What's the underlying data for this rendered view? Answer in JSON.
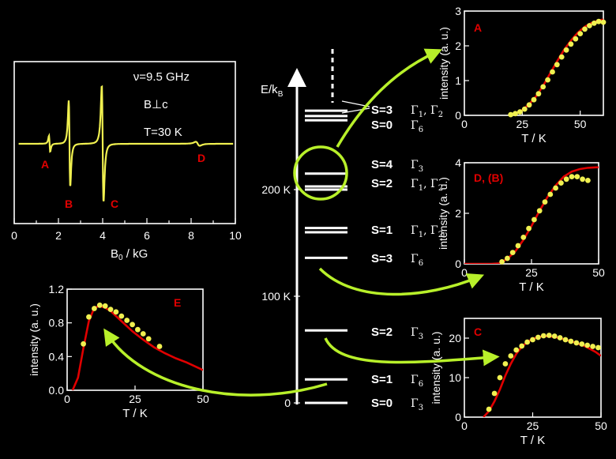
{
  "chart_data": [
    {
      "id": "epr",
      "type": "line",
      "xlabel": "B",
      "xlabel_sub": "0",
      "xlabel_unit": " / kG",
      "xlim": [
        0,
        10
      ],
      "xticks": [
        "0",
        "2",
        "4",
        "6",
        "8",
        "10"
      ],
      "annotations": [
        "ν=9.5 GHz",
        "B⊥c",
        "T=30 K"
      ],
      "peak_labels": [
        {
          "text": "A",
          "x": 1.6
        },
        {
          "text": "B",
          "x": 2.5
        },
        {
          "text": "C",
          "x": 4.0
        },
        {
          "text": "D",
          "x": 8.3
        }
      ],
      "signal": {
        "baseline": 0,
        "features": [
          {
            "x": 1.6,
            "amp": 0.12,
            "w": 0.05
          },
          {
            "x": 2.5,
            "amp": 0.65,
            "w": 0.06
          },
          {
            "x": 4.0,
            "amp": 0.88,
            "w": 0.07
          },
          {
            "x": 8.3,
            "amp": 0.03,
            "w": 0.15
          }
        ]
      }
    },
    {
      "id": "A",
      "type": "scatter",
      "label": "A",
      "xlabel": "T / K",
      "ylabel": "intensity (a. u.)",
      "xlim": [
        0,
        60
      ],
      "ylim": [
        0,
        3
      ],
      "xticks": [
        "0",
        "25",
        "50"
      ],
      "yticks": [
        "0",
        "1",
        "2",
        "3"
      ],
      "fit": {
        "x": [
          19,
          22,
          25,
          28,
          31,
          34,
          37,
          40,
          43,
          46,
          49,
          52,
          55,
          58,
          60
        ],
        "y": [
          0.0,
          0.05,
          0.15,
          0.32,
          0.55,
          0.85,
          1.2,
          1.55,
          1.88,
          2.15,
          2.38,
          2.55,
          2.66,
          2.73,
          2.76
        ]
      },
      "points": {
        "x": [
          20,
          22,
          24,
          26,
          28,
          30,
          32,
          34,
          36,
          38,
          40,
          42,
          44,
          46,
          48,
          50,
          52,
          54,
          56,
          58,
          60
        ],
        "y": [
          0.02,
          0.05,
          0.1,
          0.18,
          0.3,
          0.45,
          0.62,
          0.82,
          1.02,
          1.25,
          1.46,
          1.68,
          1.88,
          2.05,
          2.2,
          2.35,
          2.48,
          2.58,
          2.65,
          2.7,
          2.68
        ]
      }
    },
    {
      "id": "DB",
      "type": "scatter",
      "label": "D, (B)",
      "xlabel": "T / K",
      "ylabel": "intensity (a. u.)",
      "xlim": [
        0,
        50
      ],
      "ylim": [
        0,
        4
      ],
      "xticks": [
        "0",
        "25",
        "50"
      ],
      "yticks": [
        "0",
        "2",
        "4"
      ],
      "fit": {
        "x": [
          0,
          10,
          13,
          16,
          19,
          22,
          25,
          28,
          31,
          34,
          37,
          40,
          43,
          46,
          49,
          50
        ],
        "y": [
          0,
          0,
          0.02,
          0.2,
          0.5,
          0.95,
          1.5,
          2.1,
          2.65,
          3.1,
          3.45,
          3.65,
          3.75,
          3.8,
          3.82,
          3.82
        ]
      },
      "points": {
        "x": [
          14,
          16,
          18,
          20,
          22,
          24,
          26,
          28,
          30,
          32,
          34,
          36,
          38,
          40,
          42,
          44,
          46
        ],
        "y": [
          0.08,
          0.22,
          0.45,
          0.72,
          1.05,
          1.4,
          1.75,
          2.1,
          2.45,
          2.75,
          3.0,
          3.2,
          3.35,
          3.45,
          3.45,
          3.35,
          3.3
        ]
      }
    },
    {
      "id": "C",
      "type": "scatter",
      "label": "C",
      "xlabel": "T / K",
      "ylabel": "intensity (a. u.)",
      "xlim": [
        0,
        50
      ],
      "ylim": [
        0,
        25
      ],
      "xticks": [
        "0",
        "25",
        "50"
      ],
      "yticks": [
        "0",
        "10",
        "20"
      ],
      "fit": {
        "x": [
          7,
          9,
          11,
          13,
          15,
          17,
          19,
          21,
          23,
          25,
          27,
          30,
          33,
          36,
          40,
          44,
          48,
          50
        ],
        "y": [
          0,
          1.5,
          4,
          7,
          10.5,
          13.5,
          16,
          17.8,
          19,
          19.8,
          20.3,
          20.5,
          20.3,
          19.8,
          19,
          18,
          16.5,
          15.5
        ]
      },
      "points": {
        "x": [
          9,
          11,
          13,
          15,
          17,
          19,
          21,
          23,
          25,
          27,
          29,
          31,
          33,
          35,
          37,
          39,
          41,
          43,
          45,
          47,
          49
        ],
        "y": [
          2,
          6,
          10,
          13.5,
          15.5,
          17,
          18,
          19,
          19.6,
          20.2,
          20.6,
          20.7,
          20.5,
          20.1,
          19.6,
          19.2,
          18.8,
          18.5,
          18.2,
          17.9,
          17.6
        ]
      }
    },
    {
      "id": "E",
      "type": "scatter",
      "label": "E",
      "xlabel": "T / K",
      "ylabel": "intensity (a. u.)",
      "xlim": [
        0,
        50
      ],
      "ylim": [
        0,
        1.2
      ],
      "xticks": [
        "0",
        "25",
        "50"
      ],
      "yticks": [
        "0.0",
        "0.4",
        "0.8",
        "1.2"
      ],
      "fit": {
        "x": [
          2,
          4,
          6,
          8,
          10,
          12,
          14,
          16,
          18,
          20,
          24,
          28,
          32,
          36,
          40,
          44,
          48,
          50
        ],
        "y": [
          0,
          0.15,
          0.5,
          0.82,
          0.98,
          1.0,
          0.98,
          0.94,
          0.88,
          0.82,
          0.7,
          0.6,
          0.51,
          0.44,
          0.38,
          0.33,
          0.27,
          0.24
        ]
      },
      "points": {
        "x": [
          6,
          8,
          10,
          12,
          14,
          16,
          18,
          20,
          22,
          24,
          26,
          28,
          30,
          34
        ],
        "y": [
          0.55,
          0.87,
          0.97,
          1.01,
          1.0,
          0.96,
          0.93,
          0.88,
          0.83,
          0.78,
          0.72,
          0.67,
          0.61,
          0.52
        ]
      }
    },
    {
      "id": "levels",
      "type": "diagram",
      "ylabel": "E/k",
      "ylabel_sub": "B",
      "yticks": [
        "0",
        "100 K",
        "200 K"
      ],
      "ylim": [
        0,
        280
      ],
      "levels": [
        {
          "E": 0,
          "text": "S=0",
          "gamma": "3"
        },
        {
          "E": 22,
          "text": "S=1",
          "gamma": "6"
        },
        {
          "E": 68,
          "text": "S=2",
          "gamma": "3"
        },
        {
          "E": 136,
          "text": "S=3",
          "gamma": "6"
        },
        {
          "E": 160,
          "text": "S=1",
          "gamma": "1, Γ2"
        },
        {
          "E": 164,
          "text": "",
          "gamma": ""
        },
        {
          "E": 200,
          "text": "S=2",
          "gamma": "1, Γ2"
        },
        {
          "E": 203,
          "text": "",
          "gamma": ""
        },
        {
          "E": 215,
          "text": "S=4",
          "gamma": "3"
        },
        {
          "E": 265,
          "text": "S=0",
          "gamma": "6"
        },
        {
          "E": 269,
          "text": "",
          "gamma": ""
        },
        {
          "E": 274,
          "text": "S=3",
          "gamma": "1, Γ2"
        }
      ]
    }
  ]
}
